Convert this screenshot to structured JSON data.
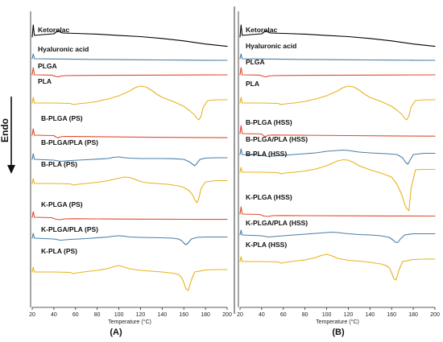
{
  "chart_data": [
    {
      "type": "line",
      "panel_label": "(A)",
      "xlabel": "Temperature (°C)",
      "xlim": [
        20,
        200
      ],
      "x_ticks": [
        20,
        40,
        60,
        80,
        100,
        120,
        140,
        160,
        180,
        200
      ],
      "y_direction_label": "Endo",
      "series": [
        {
          "name": "Ketorolac",
          "color": "#000000",
          "x": [
            20,
            21,
            22,
            30,
            40,
            44,
            46,
            48,
            60,
            80,
            100,
            120,
            140,
            160,
            180,
            200
          ],
          "y": [
            0,
            15,
            2,
            3,
            4,
            8,
            6,
            5,
            4.5,
            3.6,
            1.9,
            0.5,
            -1.8,
            -4.8,
            -8.7,
            -11.6
          ]
        },
        {
          "name": "Hyaluronic acid",
          "color": "#4a7ea6",
          "x": [
            20,
            21,
            22,
            40,
            60,
            80,
            100,
            120,
            140,
            160,
            180,
            200
          ],
          "y": [
            0,
            6,
            0,
            -0.3,
            -0.6,
            -0.9,
            -1.1,
            -1.3,
            -1.5,
            -1.7,
            -1.9,
            -2
          ]
        },
        {
          "name": "PLGA",
          "color": "#e04a2e",
          "x": [
            20,
            21,
            22,
            38,
            42,
            44,
            46,
            50,
            60,
            80,
            120,
            160,
            200
          ],
          "y": [
            0,
            9,
            0,
            -0.3,
            -2,
            -2.6,
            -1.5,
            -1,
            -0.8,
            -0.6,
            -0.4,
            -0.2,
            0
          ]
        },
        {
          "name": "PLA",
          "color": "#e8b21c",
          "x": [
            20,
            21,
            22,
            40,
            55,
            58,
            62,
            70,
            80,
            90,
            100,
            110,
            115,
            120,
            125,
            130,
            135,
            140,
            150,
            160,
            165,
            170,
            172,
            174,
            176,
            178,
            182,
            190,
            200
          ],
          "y": [
            0,
            7,
            0,
            0,
            -0.5,
            -2,
            -1,
            0,
            2,
            5,
            9,
            15,
            19,
            21,
            20,
            16,
            11,
            7,
            2,
            -4,
            -9,
            -15,
            -19,
            -21,
            -16,
            -5,
            3,
            4,
            4
          ]
        },
        {
          "name": "B-PLGA (PS)",
          "color": "#e04a2e",
          "x": [
            20,
            21,
            22,
            40,
            42,
            44,
            46,
            50,
            60,
            80,
            120,
            160,
            200
          ],
          "y": [
            0,
            8,
            0,
            -0.5,
            -2.5,
            -3.2,
            -2,
            -1.5,
            -1.6,
            -1.9,
            -2.4,
            -2.8,
            -3.1
          ]
        },
        {
          "name": "B-PLGA/PLA (PS)",
          "color": "#4a7ea6",
          "x": [
            20,
            21,
            22,
            40,
            46,
            55,
            70,
            90,
            95,
            100,
            105,
            110,
            120,
            140,
            150,
            160,
            165,
            168,
            170,
            172,
            175,
            180,
            190,
            200
          ],
          "y": [
            0,
            7,
            0,
            -1,
            -2.5,
            -1.5,
            -0.5,
            1,
            2.5,
            3,
            2,
            1.5,
            1,
            1,
            0.8,
            0,
            -3,
            -6,
            -8,
            -5,
            0,
            1.5,
            2,
            2
          ]
        },
        {
          "name": "B-PLA (PS)",
          "color": "#e8b21c",
          "x": [
            20,
            21,
            22,
            40,
            55,
            58,
            62,
            70,
            80,
            90,
            100,
            105,
            110,
            115,
            120,
            125,
            135,
            145,
            155,
            160,
            165,
            168,
            170,
            172,
            174,
            176,
            180,
            190,
            200
          ],
          "y": [
            0,
            6,
            0,
            0,
            -0.5,
            -2,
            -1,
            0,
            1.5,
            3.5,
            6.5,
            8,
            7.5,
            5,
            2.5,
            1,
            0,
            -1,
            -3,
            -5,
            -9,
            -14,
            -20,
            -24,
            -18,
            -6,
            2,
            3.5,
            3.5
          ]
        },
        {
          "name": "K-PLGA (PS)",
          "color": "#e04a2e",
          "x": [
            20,
            21,
            22,
            38,
            42,
            46,
            50,
            60,
            80,
            120,
            160,
            200
          ],
          "y": [
            0,
            7,
            0,
            -0.5,
            -2.5,
            -3,
            -2,
            -1.8,
            -2,
            -2.3,
            -2.5,
            -2.6
          ]
        },
        {
          "name": "K-PLGA/PLA (PS)",
          "color": "#4a7ea6",
          "x": [
            20,
            21,
            22,
            40,
            46,
            55,
            70,
            90,
            95,
            100,
            105,
            110,
            120,
            140,
            150,
            155,
            158,
            160,
            162,
            164,
            167,
            172,
            180,
            200
          ],
          "y": [
            0,
            6,
            0,
            -1,
            -2.5,
            -1.5,
            -0.5,
            1.5,
            2.5,
            3,
            2.5,
            1.5,
            1,
            0.5,
            0,
            -1,
            -3,
            -6,
            -8,
            -6,
            -1,
            1,
            1.5,
            1.5
          ]
        },
        {
          "name": "K-PLA (PS)",
          "color": "#e8b21c",
          "x": [
            20,
            21,
            22,
            40,
            55,
            58,
            62,
            70,
            80,
            90,
            95,
            100,
            105,
            110,
            120,
            130,
            140,
            150,
            155,
            158,
            160,
            162,
            164,
            167,
            170,
            180,
            190,
            200
          ],
          "y": [
            0,
            6,
            0,
            0,
            -0.5,
            -2,
            -1,
            0.5,
            2,
            4.5,
            6.5,
            8,
            6,
            4,
            2,
            1,
            0,
            -1.5,
            -3,
            -7,
            -13,
            -21,
            -23,
            -10,
            0,
            2.5,
            3,
            3
          ]
        }
      ]
    },
    {
      "type": "line",
      "panel_label": "(B)",
      "xlabel": "Temperature (°C)",
      "xlim": [
        20,
        200
      ],
      "x_ticks": [
        20,
        40,
        60,
        80,
        100,
        120,
        140,
        160,
        180,
        200
      ],
      "series": [
        {
          "name": "Ketorolac",
          "color": "#000000",
          "x": [
            20,
            21,
            22,
            30,
            40,
            44,
            46,
            48,
            60,
            80,
            100,
            120,
            140,
            160,
            180,
            200
          ],
          "y": [
            0,
            15,
            2,
            3,
            4,
            8,
            6,
            5,
            4.5,
            3.6,
            1.9,
            0.5,
            -1.8,
            -4.8,
            -8.7,
            -11.6
          ]
        },
        {
          "name": "Hyaluronic acid",
          "color": "#4a7ea6",
          "x": [
            20,
            21,
            22,
            40,
            60,
            80,
            100,
            120,
            140,
            160,
            180,
            200
          ],
          "y": [
            0,
            6,
            0,
            -0.3,
            -0.6,
            -0.9,
            -1.1,
            -1.3,
            -1.5,
            -1.7,
            -1.9,
            -2
          ]
        },
        {
          "name": "PLGA",
          "color": "#e04a2e",
          "x": [
            20,
            21,
            22,
            38,
            42,
            44,
            46,
            50,
            60,
            80,
            120,
            160,
            200
          ],
          "y": [
            0,
            9,
            0,
            -0.3,
            -2,
            -2.6,
            -1.5,
            -1,
            -0.8,
            -0.6,
            -0.4,
            -0.2,
            0
          ]
        },
        {
          "name": "PLA",
          "color": "#e8b21c",
          "x": [
            20,
            21,
            22,
            40,
            55,
            58,
            62,
            70,
            80,
            90,
            100,
            110,
            115,
            120,
            125,
            130,
            135,
            140,
            150,
            160,
            165,
            170,
            172,
            174,
            176,
            178,
            182,
            190,
            200
          ],
          "y": [
            0,
            7,
            0,
            0,
            -0.5,
            -2,
            -1,
            0,
            2,
            5,
            9,
            15,
            19,
            21,
            20,
            16,
            11,
            7,
            2,
            -4,
            -9,
            -15,
            -19,
            -21,
            -16,
            -5,
            3,
            4,
            4
          ]
        },
        {
          "name": "B-PLGA (HSS)",
          "color": "#e04a2e",
          "x": [
            20,
            21,
            22,
            40,
            42,
            44,
            46,
            50,
            60,
            80,
            120,
            160,
            200
          ],
          "y": [
            0,
            10,
            0,
            -0.5,
            -3,
            -3.5,
            -2,
            -1.8,
            -1.9,
            -2.1,
            -2.5,
            -2.9,
            -3.2
          ]
        },
        {
          "name": "B-PLGA/PLA (HSS)",
          "color": "#4a7ea6",
          "x": [
            20,
            21,
            22,
            40,
            46,
            55,
            70,
            90,
            100,
            110,
            115,
            120,
            125,
            130,
            140,
            155,
            165,
            170,
            173,
            175,
            177,
            180,
            190,
            200
          ],
          "y": [
            0,
            7,
            0,
            -1,
            -2.5,
            -1.5,
            0,
            2,
            4,
            5,
            5.5,
            5,
            4,
            3,
            2,
            1,
            0,
            -4,
            -10,
            -12,
            -7,
            0,
            1.5,
            1.5
          ]
        },
        {
          "name": "B-PLA (HSS)",
          "color": "#e8b21c",
          "x": [
            20,
            21,
            22,
            40,
            55,
            58,
            62,
            70,
            80,
            90,
            100,
            105,
            110,
            115,
            120,
            125,
            130,
            140,
            150,
            160,
            165,
            170,
            172,
            174,
            176,
            178,
            182,
            190,
            200
          ],
          "y": [
            0,
            6,
            0,
            0,
            -0.5,
            -2,
            -1,
            0,
            1.5,
            4,
            8,
            11,
            14,
            15.5,
            15,
            12,
            8,
            3,
            -1,
            -6,
            -15,
            -30,
            -40,
            -45,
            -48,
            -20,
            3,
            3.5,
            3.5
          ]
        },
        {
          "name": "K-PLGA (HSS)",
          "color": "#e04a2e",
          "x": [
            20,
            21,
            22,
            38,
            42,
            46,
            50,
            60,
            80,
            120,
            160,
            200
          ],
          "y": [
            0,
            9,
            0,
            -0.5,
            -2.5,
            -3,
            -2,
            -1.8,
            -2,
            -2.2,
            -2.4,
            -2.5
          ]
        },
        {
          "name": "K-PLGA/PLA (HSS)",
          "color": "#4a7ea6",
          "x": [
            20,
            21,
            22,
            40,
            46,
            55,
            70,
            90,
            100,
            105,
            110,
            120,
            130,
            140,
            150,
            158,
            162,
            164,
            166,
            168,
            172,
            180,
            200
          ],
          "y": [
            0,
            6,
            0,
            -1,
            -2.5,
            -1.5,
            0,
            2,
            3,
            3.5,
            3,
            1.5,
            0.5,
            0,
            -1,
            -3,
            -7,
            -9.5,
            -9,
            -5,
            0,
            1.5,
            1.5
          ]
        },
        {
          "name": "K-PLA (HSS)",
          "color": "#e8b21c",
          "x": [
            20,
            21,
            22,
            40,
            55,
            58,
            62,
            70,
            80,
            90,
            95,
            100,
            105,
            110,
            120,
            130,
            140,
            150,
            155,
            158,
            160,
            162,
            164,
            167,
            170,
            180,
            190,
            200
          ],
          "y": [
            0,
            6,
            0,
            0,
            -0.5,
            -2,
            -1,
            0.5,
            2,
            5,
            7.5,
            9,
            7,
            4,
            1.5,
            0.5,
            -1,
            -3,
            -5,
            -8,
            -14,
            -21,
            -23,
            -10,
            0,
            2.5,
            3,
            3
          ]
        }
      ]
    }
  ]
}
